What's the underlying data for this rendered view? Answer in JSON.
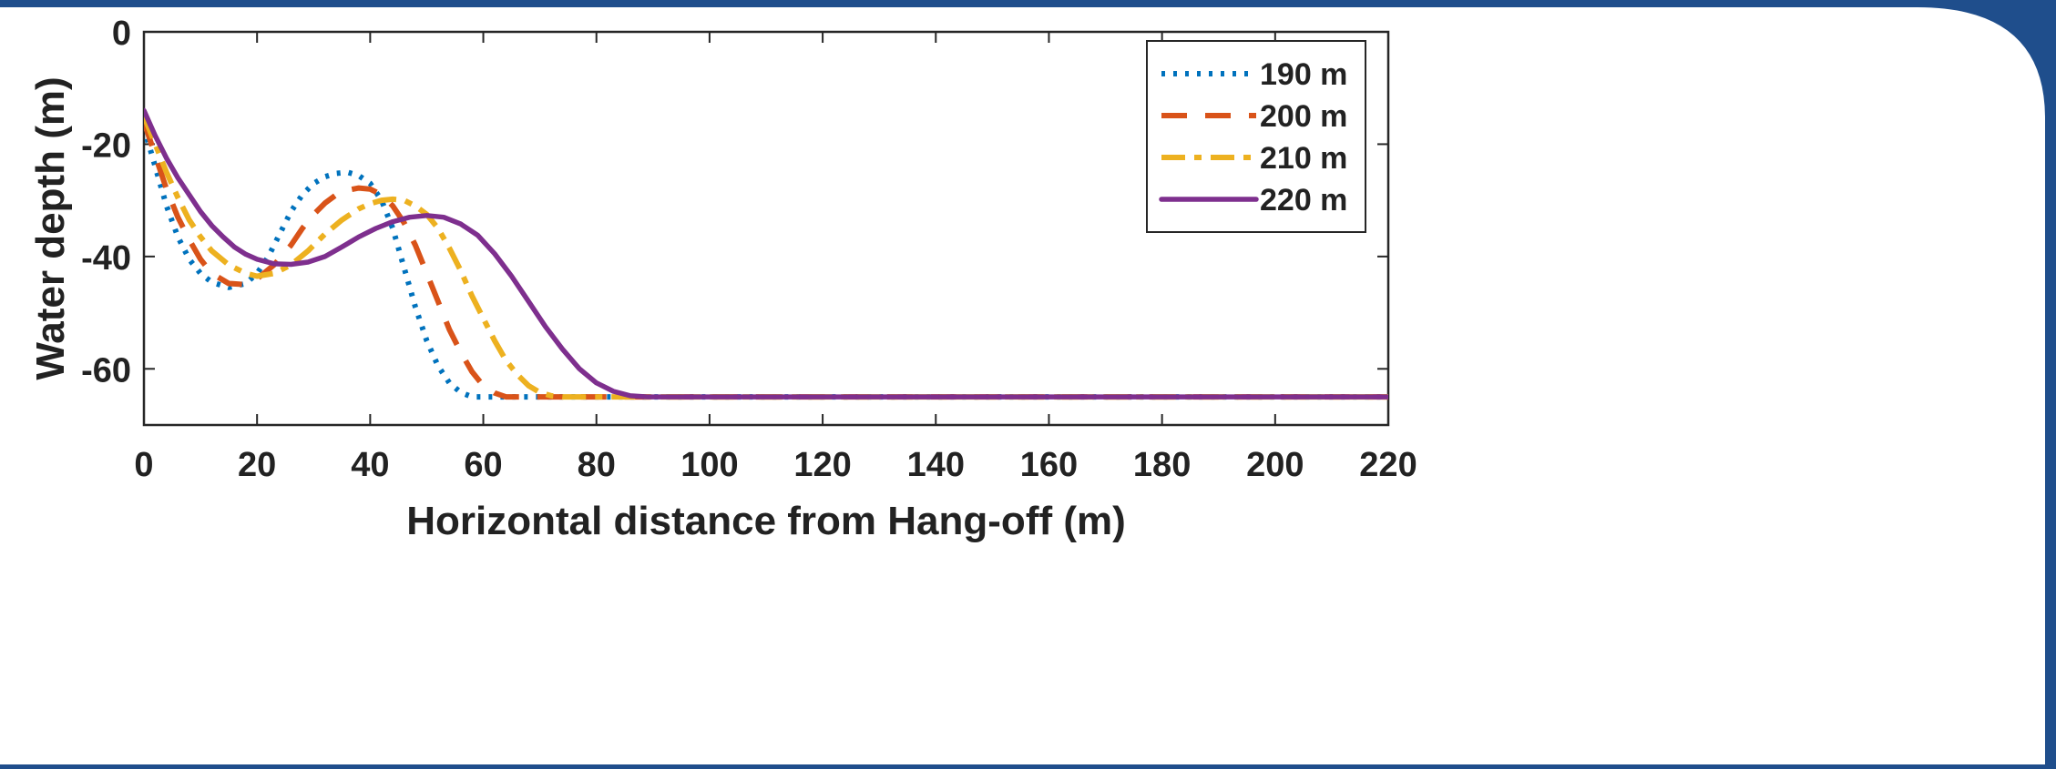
{
  "chart_data": {
    "type": "line",
    "title": "",
    "xlabel": "Horizontal distance from Hang-off (m)",
    "ylabel": "Water depth (m)",
    "xlim": [
      0,
      220
    ],
    "ylim": [
      -70,
      0
    ],
    "xticks": [
      0,
      20,
      40,
      60,
      80,
      100,
      120,
      140,
      160,
      180,
      200,
      220
    ],
    "yticks": [
      0,
      -20,
      -40,
      -60
    ],
    "grid": false,
    "legend_position": "top-right",
    "series": [
      {
        "name": "190 m",
        "color": "#0072BD",
        "style": "dotted",
        "points": [
          [
            0,
            -17
          ],
          [
            2,
            -24
          ],
          [
            4,
            -31
          ],
          [
            6,
            -36.5
          ],
          [
            8,
            -40.5
          ],
          [
            10,
            -43
          ],
          [
            12,
            -44.6
          ],
          [
            15,
            -45.5
          ],
          [
            18,
            -44.8
          ],
          [
            20,
            -43
          ],
          [
            22,
            -40
          ],
          [
            24,
            -36
          ],
          [
            26,
            -32
          ],
          [
            28,
            -29
          ],
          [
            30,
            -27
          ],
          [
            32,
            -25.8
          ],
          [
            34,
            -25.2
          ],
          [
            36,
            -25
          ],
          [
            38,
            -25.6
          ],
          [
            40,
            -27
          ],
          [
            42,
            -30
          ],
          [
            44,
            -35
          ],
          [
            46,
            -42
          ],
          [
            48,
            -49
          ],
          [
            50,
            -55
          ],
          [
            52,
            -59.5
          ],
          [
            54,
            -62.5
          ],
          [
            56,
            -64.2
          ],
          [
            58,
            -65
          ],
          [
            60,
            -65
          ],
          [
            220,
            -65
          ]
        ]
      },
      {
        "name": "200 m",
        "color": "#D95319",
        "style": "dashed",
        "points": [
          [
            0,
            -16
          ],
          [
            2,
            -22
          ],
          [
            4,
            -28
          ],
          [
            6,
            -33
          ],
          [
            8,
            -37
          ],
          [
            10,
            -40.5
          ],
          [
            12,
            -43
          ],
          [
            15,
            -44.8
          ],
          [
            18,
            -45
          ],
          [
            20,
            -44
          ],
          [
            23,
            -41.5
          ],
          [
            26,
            -38
          ],
          [
            28,
            -35
          ],
          [
            30,
            -32.5
          ],
          [
            32,
            -30.5
          ],
          [
            34,
            -29
          ],
          [
            36,
            -28.2
          ],
          [
            38,
            -27.8
          ],
          [
            40,
            -28
          ],
          [
            42,
            -29
          ],
          [
            44,
            -31
          ],
          [
            46,
            -34
          ],
          [
            48,
            -38
          ],
          [
            50,
            -43
          ],
          [
            52,
            -48
          ],
          [
            54,
            -53
          ],
          [
            56,
            -57
          ],
          [
            58,
            -60.5
          ],
          [
            60,
            -63
          ],
          [
            62,
            -64.3
          ],
          [
            64,
            -65
          ],
          [
            66,
            -65
          ],
          [
            220,
            -65
          ]
        ]
      },
      {
        "name": "210 m",
        "color": "#EDB120",
        "style": "dashdot",
        "points": [
          [
            0,
            -15
          ],
          [
            2,
            -20
          ],
          [
            4,
            -25
          ],
          [
            6,
            -29.5
          ],
          [
            8,
            -33.5
          ],
          [
            10,
            -36.5
          ],
          [
            12,
            -39
          ],
          [
            15,
            -41.5
          ],
          [
            18,
            -43
          ],
          [
            20,
            -43.5
          ],
          [
            23,
            -43
          ],
          [
            26,
            -41.5
          ],
          [
            29,
            -39
          ],
          [
            32,
            -36
          ],
          [
            35,
            -33.5
          ],
          [
            38,
            -31.5
          ],
          [
            40,
            -30.6
          ],
          [
            42,
            -30
          ],
          [
            44,
            -29.8
          ],
          [
            46,
            -30
          ],
          [
            48,
            -31
          ],
          [
            50,
            -32.5
          ],
          [
            52,
            -35
          ],
          [
            54,
            -38.5
          ],
          [
            56,
            -42.5
          ],
          [
            58,
            -47
          ],
          [
            60,
            -51
          ],
          [
            62,
            -55
          ],
          [
            64,
            -58.5
          ],
          [
            66,
            -61
          ],
          [
            68,
            -63
          ],
          [
            70,
            -64.2
          ],
          [
            72,
            -64.8
          ],
          [
            74,
            -65
          ],
          [
            76,
            -65
          ],
          [
            220,
            -65
          ]
        ]
      },
      {
        "name": "220 m",
        "color": "#7E2F8E",
        "style": "solid",
        "points": [
          [
            0,
            -14
          ],
          [
            2,
            -18.5
          ],
          [
            4,
            -22.5
          ],
          [
            6,
            -26
          ],
          [
            8,
            -29
          ],
          [
            10,
            -32
          ],
          [
            12,
            -34.5
          ],
          [
            14,
            -36.5
          ],
          [
            16,
            -38.3
          ],
          [
            18,
            -39.6
          ],
          [
            20,
            -40.5
          ],
          [
            23,
            -41.3
          ],
          [
            26,
            -41.4
          ],
          [
            29,
            -41
          ],
          [
            32,
            -40
          ],
          [
            35,
            -38.3
          ],
          [
            38,
            -36.5
          ],
          [
            41,
            -35
          ],
          [
            44,
            -33.8
          ],
          [
            47,
            -33
          ],
          [
            50,
            -32.7
          ],
          [
            53,
            -33
          ],
          [
            56,
            -34.2
          ],
          [
            59,
            -36.2
          ],
          [
            62,
            -39.5
          ],
          [
            65,
            -43.5
          ],
          [
            68,
            -48
          ],
          [
            71,
            -52.5
          ],
          [
            74,
            -56.5
          ],
          [
            77,
            -60
          ],
          [
            80,
            -62.5
          ],
          [
            83,
            -64
          ],
          [
            86,
            -64.8
          ],
          [
            89,
            -65
          ],
          [
            92,
            -65
          ],
          [
            220,
            -65
          ]
        ]
      }
    ]
  }
}
